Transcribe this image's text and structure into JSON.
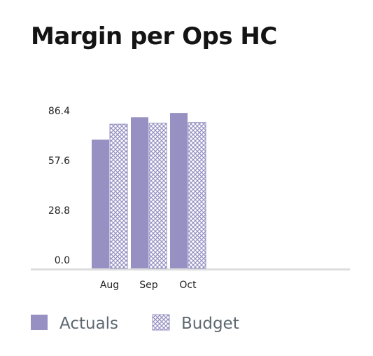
{
  "chart_data": {
    "type": "bar",
    "title": "Margin per Ops HC",
    "xlabel": "",
    "ylabel": "",
    "categories": [
      "Aug",
      "Sep",
      "Oct"
    ],
    "series": [
      {
        "name": "Actuals",
        "values": [
          74.5,
          87.5,
          90.0
        ],
        "style": "solid"
      },
      {
        "name": "Budget",
        "values": [
          83.5,
          84.0,
          84.5
        ],
        "style": "crosshatch"
      }
    ],
    "yticks": [
      "0.0",
      "28.8",
      "57.6",
      "86.4"
    ],
    "ylim": [
      0,
      100
    ],
    "grid": false,
    "legend_position": "bottom-left",
    "colors": {
      "actuals": "#9791c3",
      "budget": "#9791c3",
      "axis": "#dddddd"
    }
  }
}
